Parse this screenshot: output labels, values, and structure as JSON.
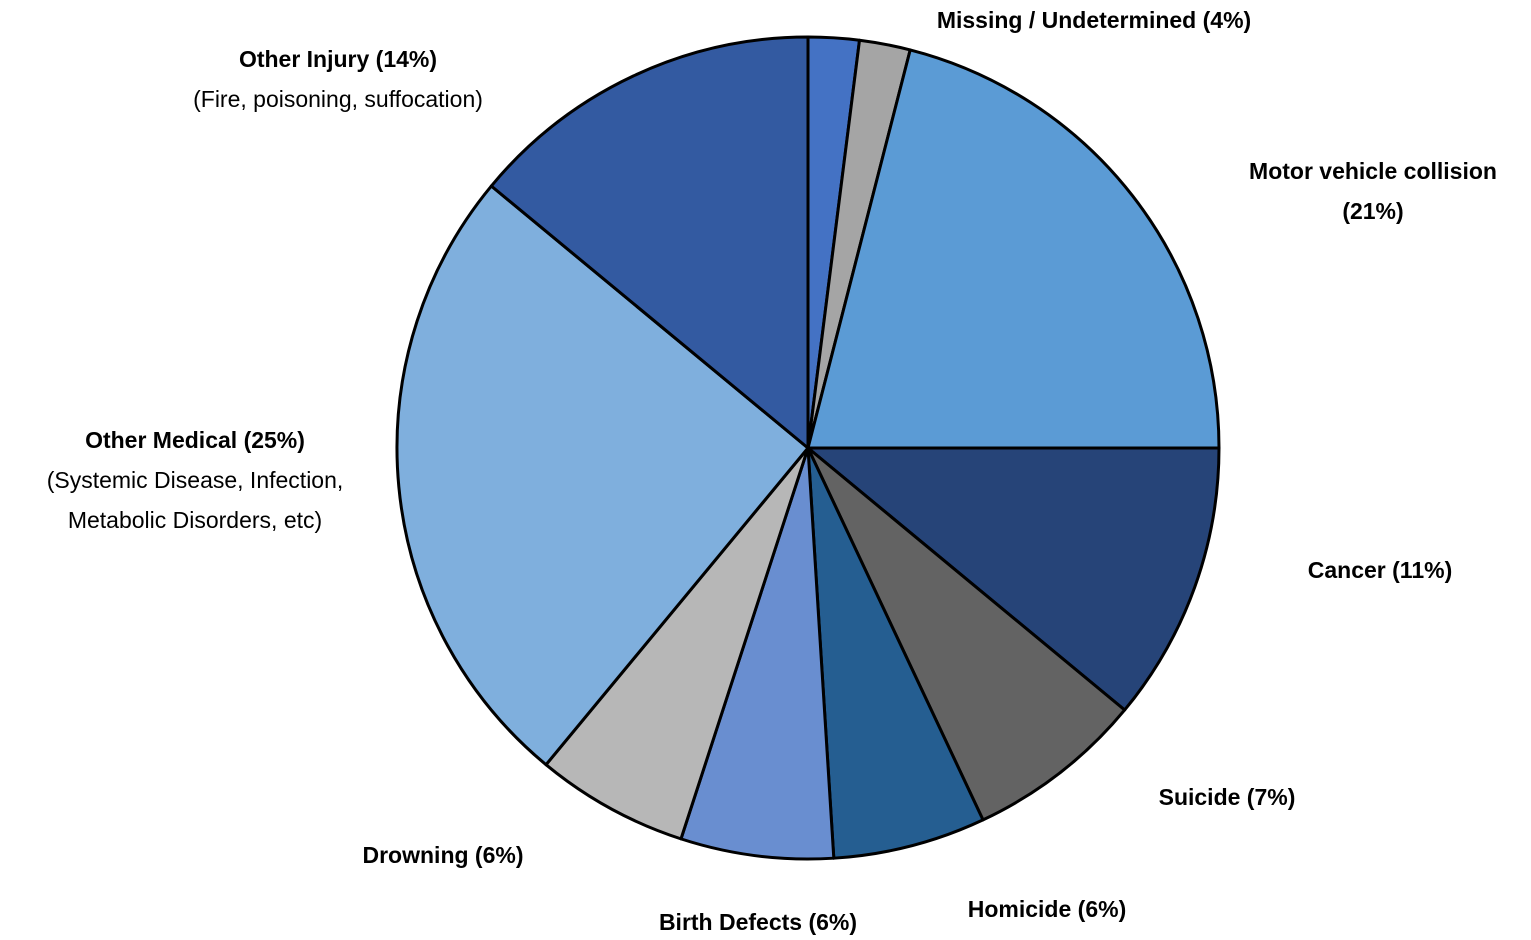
{
  "chart_data": {
    "type": "pie",
    "values": [
      2,
      2,
      21,
      11,
      7,
      6,
      6,
      6,
      25,
      14
    ],
    "colors": [
      "#4472c4",
      "#a5a5a5",
      "#5b9bd5",
      "#264478",
      "#636363",
      "#255e91",
      "#698ed0",
      "#b7b7b7",
      "#7fafdd",
      "#335aa1"
    ],
    "labels": [
      {
        "lines": [
          "Missing / Undetermined (4%)"
        ]
      },
      null,
      {
        "lines": [
          "Motor vehicle collision",
          "(21%)"
        ]
      },
      {
        "lines": [
          "Cancer (11%)"
        ]
      },
      {
        "lines": [
          "Suicide (7%)"
        ]
      },
      {
        "lines": [
          "Homicide (6%)"
        ]
      },
      {
        "lines": [
          "Birth Defects (6%)"
        ]
      },
      {
        "lines": [
          "Drowning (6%)"
        ]
      },
      {
        "lines": [
          "Other Medical (25%)"
        ],
        "notes": [
          "(Systemic Disease, Infection,",
          "Metabolic Disorders, etc)"
        ]
      },
      {
        "lines": [
          "Other Injury (14%)"
        ],
        "notes": [
          "(Fire, poisoning, suffocation)"
        ]
      }
    ]
  }
}
